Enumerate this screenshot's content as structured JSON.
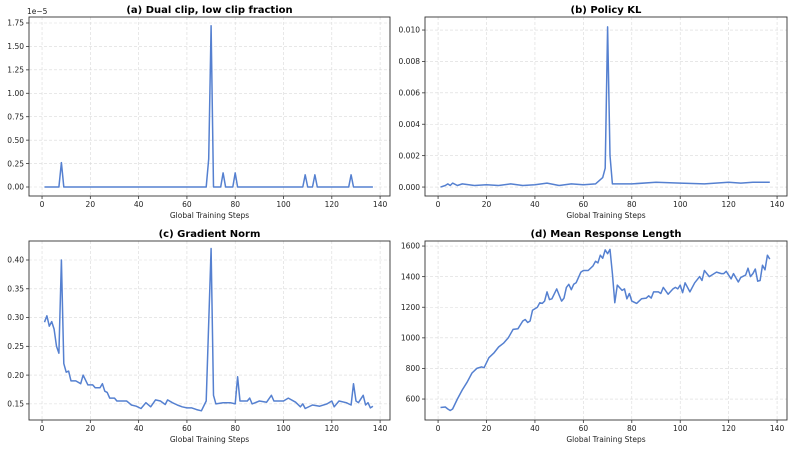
{
  "colors": {
    "line": "#5580d0",
    "grid": "#d9d9d9"
  },
  "chart_data": [
    {
      "type": "line",
      "title": "(a) Dual clip, low clip fraction",
      "xlabel": "Global Training Steps",
      "ylabel": "",
      "offset_text": "1e−5",
      "xlim": [
        -5.4,
        144.1
      ],
      "ylim": [
        -0.096,
        1.814
      ],
      "xticks": [
        0,
        20,
        40,
        60,
        80,
        100,
        120,
        140
      ],
      "yticks": [
        0.0,
        0.25,
        0.5,
        0.75,
        1.0,
        1.25,
        1.5,
        1.75
      ],
      "ytick_labels": [
        "0.00",
        "0.25",
        "0.50",
        "0.75",
        "1.00",
        "1.25",
        "1.50",
        "1.75"
      ],
      "grid": true,
      "x": [
        1,
        7,
        8,
        9,
        68,
        69,
        70,
        71,
        74,
        75,
        76,
        79,
        80,
        81,
        108,
        109,
        110,
        112,
        113,
        114,
        127,
        128,
        129,
        137
      ],
      "y": [
        0,
        0,
        0.26,
        0,
        0,
        0.3,
        1.72,
        0,
        0,
        0.15,
        0,
        0,
        0.15,
        0,
        0,
        0.13,
        0,
        0,
        0.13,
        0,
        0,
        0.13,
        0,
        0
      ]
    },
    {
      "type": "line",
      "title": "(b) Policy KL",
      "xlabel": "Global Training Steps",
      "ylabel": "",
      "xlim": [
        -5.4,
        144.1
      ],
      "ylim": [
        -0.00057,
        0.01083
      ],
      "xticks": [
        0,
        20,
        40,
        60,
        80,
        100,
        120,
        140
      ],
      "yticks": [
        0.0,
        0.002,
        0.004,
        0.006,
        0.008,
        0.01
      ],
      "ytick_labels": [
        "0.000",
        "0.002",
        "0.004",
        "0.006",
        "0.008",
        "0.010"
      ],
      "grid": true,
      "x": [
        1,
        3,
        4,
        5,
        6,
        8,
        10,
        15,
        20,
        25,
        30,
        35,
        40,
        45,
        50,
        55,
        60,
        65,
        68,
        69,
        70,
        71,
        72,
        80,
        90,
        100,
        110,
        120,
        125,
        130,
        137
      ],
      "y": [
        0.0,
        0.0001,
        0.0002,
        0.0001,
        0.00025,
        0.0001,
        0.0002,
        0.0001,
        0.00015,
        0.0001,
        0.0002,
        0.0001,
        0.00015,
        0.00025,
        0.0001,
        0.0002,
        0.00015,
        0.0002,
        0.0006,
        0.0012,
        0.0102,
        0.002,
        0.0002,
        0.0002,
        0.0003,
        0.00025,
        0.0002,
        0.0003,
        0.00025,
        0.0003,
        0.0003
      ]
    },
    {
      "type": "line",
      "title": "(c) Gradient Norm",
      "xlabel": "Global Training Steps",
      "ylabel": "",
      "xlim": [
        -5.4,
        144.1
      ],
      "ylim": [
        0.122,
        0.433
      ],
      "xticks": [
        0,
        20,
        40,
        60,
        80,
        100,
        120,
        140
      ],
      "yticks": [
        0.15,
        0.2,
        0.25,
        0.3,
        0.35,
        0.4
      ],
      "ytick_labels": [
        "0.15",
        "0.20",
        "0.25",
        "0.30",
        "0.35",
        "0.40"
      ],
      "grid": true,
      "x": [
        1,
        2,
        3,
        4,
        5,
        6,
        7,
        8,
        9,
        10,
        11,
        12,
        14,
        16,
        17,
        19,
        21,
        22,
        24,
        25,
        26,
        27,
        28,
        30,
        31,
        33,
        35,
        37,
        39,
        41,
        43,
        45,
        47,
        49,
        51,
        52,
        54,
        56,
        58,
        60,
        62,
        64,
        66,
        68,
        70,
        71,
        72,
        75,
        78,
        80,
        81,
        82,
        85,
        86,
        87,
        90,
        93,
        95,
        96,
        100,
        102,
        105,
        107,
        108,
        109,
        112,
        115,
        118,
        120,
        121,
        123,
        126,
        128,
        129,
        130,
        131,
        133,
        134,
        135,
        136,
        137
      ],
      "y": [
        0.292,
        0.303,
        0.285,
        0.293,
        0.28,
        0.25,
        0.238,
        0.4,
        0.22,
        0.205,
        0.207,
        0.19,
        0.19,
        0.185,
        0.2,
        0.183,
        0.183,
        0.178,
        0.178,
        0.185,
        0.172,
        0.17,
        0.16,
        0.16,
        0.155,
        0.155,
        0.155,
        0.148,
        0.146,
        0.142,
        0.152,
        0.145,
        0.157,
        0.155,
        0.149,
        0.157,
        0.152,
        0.148,
        0.145,
        0.143,
        0.143,
        0.14,
        0.138,
        0.155,
        0.42,
        0.165,
        0.15,
        0.152,
        0.152,
        0.15,
        0.197,
        0.155,
        0.155,
        0.16,
        0.15,
        0.155,
        0.153,
        0.165,
        0.155,
        0.155,
        0.16,
        0.153,
        0.145,
        0.15,
        0.142,
        0.148,
        0.146,
        0.15,
        0.155,
        0.145,
        0.155,
        0.152,
        0.148,
        0.185,
        0.155,
        0.152,
        0.165,
        0.148,
        0.152,
        0.143,
        0.146
      ]
    },
    {
      "type": "line",
      "title": "(d) Mean Response Length",
      "xlabel": "Global Training Steps",
      "ylabel": "",
      "xlim": [
        -5.4,
        144.1
      ],
      "ylim": [
        463,
        1633
      ],
      "xticks": [
        0,
        20,
        40,
        60,
        80,
        100,
        120,
        140
      ],
      "yticks": [
        600,
        800,
        1000,
        1200,
        1400,
        1600
      ],
      "ytick_labels": [
        "600",
        "800",
        "1000",
        "1200",
        "1400",
        "1600"
      ],
      "grid": true,
      "x": [
        1,
        3,
        4,
        5,
        6,
        8,
        10,
        12,
        14,
        16,
        18,
        19,
        21,
        23,
        25,
        27,
        29,
        31,
        33,
        35,
        36,
        37,
        38,
        39,
        41,
        42,
        43,
        44,
        45,
        46,
        47,
        49,
        50,
        51,
        52,
        53,
        54,
        55,
        56,
        57,
        59,
        60,
        62,
        64,
        65,
        66,
        67,
        68,
        69,
        70,
        71,
        72,
        73,
        74,
        76,
        77,
        78,
        79,
        80,
        82,
        84,
        86,
        87,
        88,
        89,
        91,
        92,
        93,
        95,
        97,
        98,
        99,
        100,
        101,
        102,
        104,
        106,
        107,
        108,
        109,
        110,
        112,
        115,
        117,
        118,
        119,
        121,
        122,
        124,
        125,
        127,
        128,
        129,
        130,
        131,
        132,
        133,
        134,
        135,
        136,
        137
      ],
      "y": [
        545,
        548,
        535,
        525,
        535,
        600,
        660,
        710,
        770,
        800,
        810,
        805,
        870,
        900,
        940,
        965,
        1000,
        1055,
        1060,
        1110,
        1120,
        1100,
        1110,
        1180,
        1200,
        1230,
        1225,
        1240,
        1300,
        1250,
        1255,
        1320,
        1280,
        1240,
        1260,
        1330,
        1350,
        1315,
        1350,
        1360,
        1430,
        1440,
        1440,
        1470,
        1500,
        1490,
        1540,
        1520,
        1575,
        1550,
        1578,
        1420,
        1230,
        1345,
        1310,
        1320,
        1255,
        1290,
        1240,
        1225,
        1255,
        1260,
        1275,
        1260,
        1300,
        1300,
        1290,
        1330,
        1285,
        1320,
        1330,
        1320,
        1345,
        1295,
        1360,
        1300,
        1360,
        1380,
        1400,
        1375,
        1440,
        1400,
        1430,
        1420,
        1420,
        1435,
        1385,
        1420,
        1365,
        1395,
        1410,
        1455,
        1400,
        1420,
        1450,
        1370,
        1375,
        1475,
        1445,
        1540,
        1515
      ]
    }
  ]
}
